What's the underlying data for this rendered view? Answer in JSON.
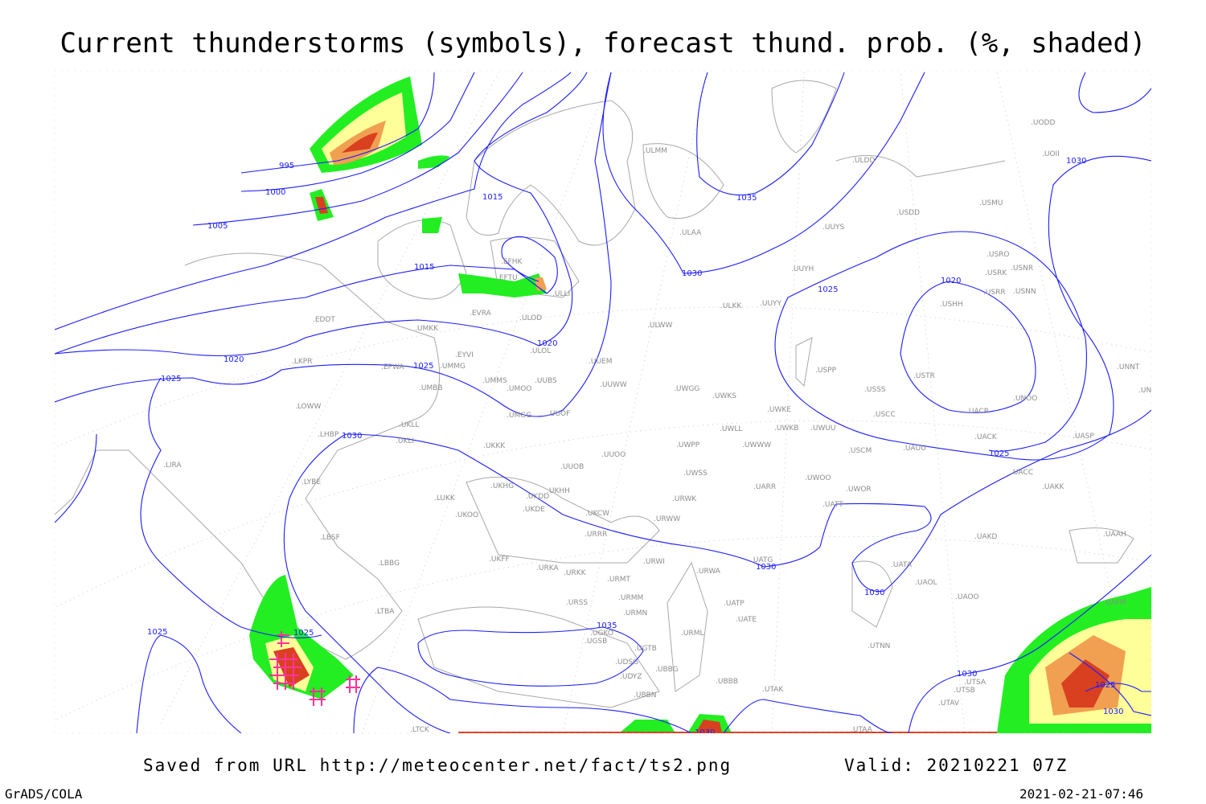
{
  "title": "Current thunderstorms (symbols), forecast thund. prob. (%, shaded)",
  "footer": {
    "source": "Saved from URL http://meteocenter.net/fact/ts2.png",
    "valid": "Valid: 20210221 07Z",
    "software": "GrADS/COLA",
    "timestamp": "2021-02-21-07:46"
  },
  "colors": {
    "isobar": "#1c1cff",
    "coastline": "#a8a8a8",
    "prob_low": "#22ee22",
    "prob_mid": "#ffff99",
    "prob_high": "#f0a050",
    "prob_max": "#d84020",
    "thunderstorm_symbol": "#ff3399"
  },
  "isobar_labels": [
    "995",
    "1000",
    "1005",
    "1015",
    "1015",
    "1020",
    "1020",
    "1025",
    "1025",
    "1025",
    "1030",
    "1030",
    "1035",
    "1030",
    "1025",
    "1020",
    "1030",
    "1030",
    "1035",
    "1025",
    "1025",
    "1030",
    "1025",
    "1030",
    "1030"
  ],
  "stations": [
    "ULMM",
    "ULDD",
    "UODD",
    "UOII",
    "USDD",
    "USMU",
    "ULAA",
    "UUYS",
    "USRO",
    "USRK",
    "USNR",
    "USRR",
    "USNN",
    "UUYH",
    "EFHK",
    "EFTU",
    "ULLI",
    "USHH",
    "ULKK",
    "UUYY",
    "EVRA",
    "ULOD",
    "EDDT",
    "UMKK",
    "ULWW",
    "ULOL",
    "EYVI",
    "UUEM",
    "LKPR",
    "EPWA",
    "UMMG",
    "USPP",
    "USTR",
    "UMMS",
    "UUBS",
    "UMOO",
    "UMBB",
    "UUWW",
    "UWGG",
    "UWKS",
    "USSS",
    "UNOO",
    "UNNT",
    "UNBB",
    "LOWW",
    "UWKE",
    "USCC",
    "UACP",
    "UMGG",
    "UUOF",
    "UWKB",
    "UWUU",
    "UWLL",
    "UKLL",
    "LHBP",
    "UKLI",
    "UACK",
    "UASP",
    "UKKK",
    "UWWW",
    "UWPP",
    "USCM",
    "UAUU",
    "UUOO",
    "LIRA",
    "UUOB",
    "UWSS",
    "UACC",
    "LYBE",
    "UKHG",
    "UKHH",
    "UARR",
    "UWOO",
    "UWOR",
    "UAKK",
    "UKDD",
    "LUKK",
    "URWK",
    "UKOO",
    "UKDE",
    "UKCW",
    "URWW",
    "UATT",
    "LBSF",
    "URRR",
    "UAKD",
    "UAAH",
    "UKFF",
    "URWI",
    "UATG",
    "URKA",
    "URKK",
    "URWA",
    "UATA",
    "LBBG",
    "URMT",
    "UAOL",
    "UAOO",
    "URMM",
    "URSS",
    "UATP",
    "LTBA",
    "URMN",
    "UATE",
    "UAFM",
    "UGKO",
    "URML",
    "UGSB",
    "UGTB",
    "UTNN",
    "UDSG",
    "UBBG",
    "UDYZ",
    "UBBB",
    "UTSA",
    "UTSB",
    "UTAK",
    "UBBN",
    "UTAV",
    "UTAA",
    "LTCK"
  ]
}
